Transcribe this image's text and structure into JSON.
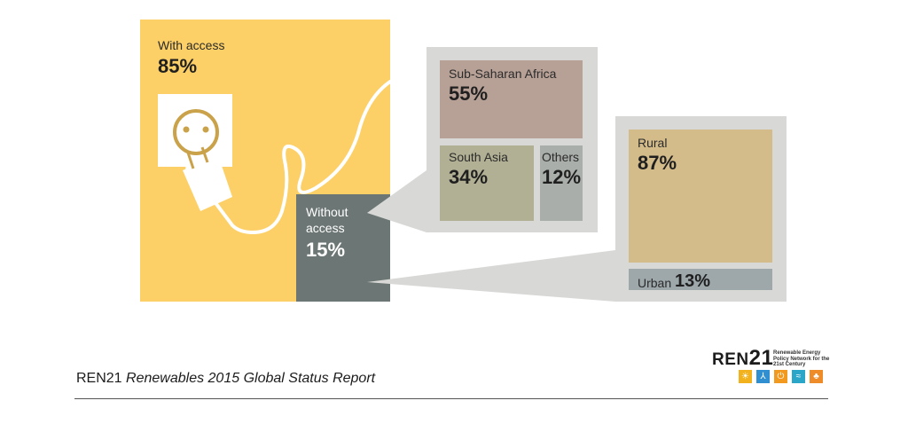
{
  "with_access": {
    "label": "With access",
    "value": "85%",
    "color": "#fcd066"
  },
  "without_access": {
    "label_line1": "Without",
    "label_line2": "access",
    "value": "15%",
    "color": "#6c7674"
  },
  "regions": [
    {
      "label": "Sub-Saharan Africa",
      "value": "55%",
      "color": "#b7a095"
    },
    {
      "label": "South Asia",
      "value": "34%",
      "color": "#b1b094"
    },
    {
      "label": "Others",
      "value": "12%",
      "color": "#a9aeaa"
    }
  ],
  "area": [
    {
      "label": "Rural",
      "value": "87%",
      "color": "#d3bb8a"
    },
    {
      "label": "Urban",
      "value": "13%",
      "color": "#9ea8ab"
    }
  ],
  "footer": {
    "org": "REN21",
    "title": "Renewables 2015 Global Status Report"
  },
  "logo": {
    "name_prefix": "REN",
    "name_suffix": "21",
    "subtitle": "Renewable Energy Policy Network for the 21st Century",
    "icons": [
      {
        "name": "sun-icon",
        "color": "#f2b21e",
        "glyph": "☀"
      },
      {
        "name": "wind-icon",
        "color": "#2f8fd0",
        "glyph": "⅄"
      },
      {
        "name": "power-icon",
        "color": "#f29a1f",
        "glyph": "⏻"
      },
      {
        "name": "water-icon",
        "color": "#2aa6c9",
        "glyph": "≈"
      },
      {
        "name": "biomass-icon",
        "color": "#ef8c2a",
        "glyph": "♣"
      }
    ]
  }
}
